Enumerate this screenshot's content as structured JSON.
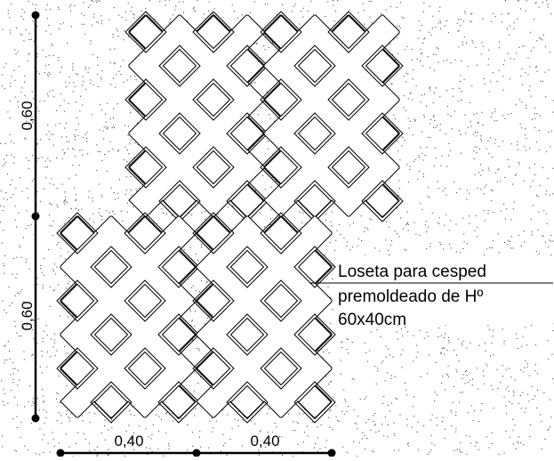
{
  "dimensions": {
    "vertical_top": "0,60",
    "vertical_bottom": "0,60",
    "horizontal_left": "0,40",
    "horizontal_right": "0,40"
  },
  "annotation": {
    "line1": "Loseta para cesped",
    "line2": "premoldeado de Hº",
    "line3": "60x40cm"
  },
  "colors": {
    "ink": "#000000",
    "background": "#ffffff",
    "stipple": "#333333"
  }
}
